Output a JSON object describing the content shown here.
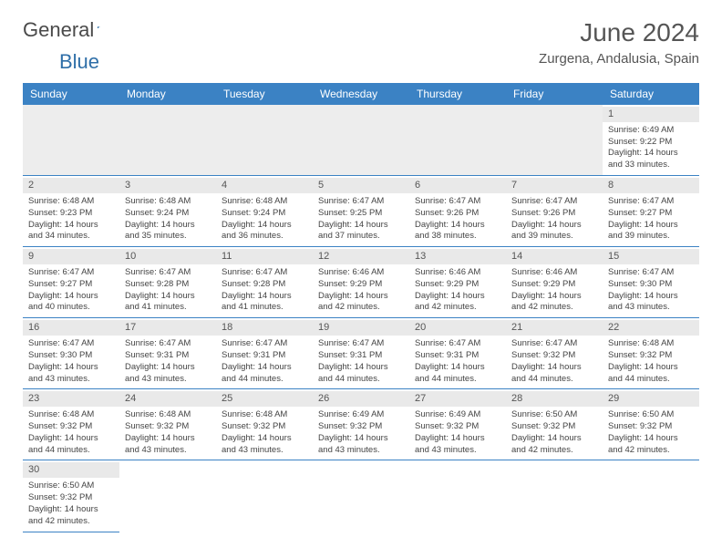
{
  "brand": {
    "name1": "General",
    "name2": "Blue"
  },
  "title": "June 2024",
  "location": "Zurgena, Andalusia, Spain",
  "colors": {
    "header_bg": "#3b82c4",
    "header_text": "#ffffff",
    "grid_line": "#3b82c4",
    "daynum_bg": "#e9e9e9",
    "empty_bg": "#ededed",
    "text": "#444444"
  },
  "day_names": [
    "Sunday",
    "Monday",
    "Tuesday",
    "Wednesday",
    "Thursday",
    "Friday",
    "Saturday"
  ],
  "weeks": [
    [
      null,
      null,
      null,
      null,
      null,
      null,
      {
        "n": "1",
        "sr": "6:49 AM",
        "ss": "9:22 PM",
        "dl": "14 hours and 33 minutes."
      }
    ],
    [
      {
        "n": "2",
        "sr": "6:48 AM",
        "ss": "9:23 PM",
        "dl": "14 hours and 34 minutes."
      },
      {
        "n": "3",
        "sr": "6:48 AM",
        "ss": "9:24 PM",
        "dl": "14 hours and 35 minutes."
      },
      {
        "n": "4",
        "sr": "6:48 AM",
        "ss": "9:24 PM",
        "dl": "14 hours and 36 minutes."
      },
      {
        "n": "5",
        "sr": "6:47 AM",
        "ss": "9:25 PM",
        "dl": "14 hours and 37 minutes."
      },
      {
        "n": "6",
        "sr": "6:47 AM",
        "ss": "9:26 PM",
        "dl": "14 hours and 38 minutes."
      },
      {
        "n": "7",
        "sr": "6:47 AM",
        "ss": "9:26 PM",
        "dl": "14 hours and 39 minutes."
      },
      {
        "n": "8",
        "sr": "6:47 AM",
        "ss": "9:27 PM",
        "dl": "14 hours and 39 minutes."
      }
    ],
    [
      {
        "n": "9",
        "sr": "6:47 AM",
        "ss": "9:27 PM",
        "dl": "14 hours and 40 minutes."
      },
      {
        "n": "10",
        "sr": "6:47 AM",
        "ss": "9:28 PM",
        "dl": "14 hours and 41 minutes."
      },
      {
        "n": "11",
        "sr": "6:47 AM",
        "ss": "9:28 PM",
        "dl": "14 hours and 41 minutes."
      },
      {
        "n": "12",
        "sr": "6:46 AM",
        "ss": "9:29 PM",
        "dl": "14 hours and 42 minutes."
      },
      {
        "n": "13",
        "sr": "6:46 AM",
        "ss": "9:29 PM",
        "dl": "14 hours and 42 minutes."
      },
      {
        "n": "14",
        "sr": "6:46 AM",
        "ss": "9:29 PM",
        "dl": "14 hours and 42 minutes."
      },
      {
        "n": "15",
        "sr": "6:47 AM",
        "ss": "9:30 PM",
        "dl": "14 hours and 43 minutes."
      }
    ],
    [
      {
        "n": "16",
        "sr": "6:47 AM",
        "ss": "9:30 PM",
        "dl": "14 hours and 43 minutes."
      },
      {
        "n": "17",
        "sr": "6:47 AM",
        "ss": "9:31 PM",
        "dl": "14 hours and 43 minutes."
      },
      {
        "n": "18",
        "sr": "6:47 AM",
        "ss": "9:31 PM",
        "dl": "14 hours and 44 minutes."
      },
      {
        "n": "19",
        "sr": "6:47 AM",
        "ss": "9:31 PM",
        "dl": "14 hours and 44 minutes."
      },
      {
        "n": "20",
        "sr": "6:47 AM",
        "ss": "9:31 PM",
        "dl": "14 hours and 44 minutes."
      },
      {
        "n": "21",
        "sr": "6:47 AM",
        "ss": "9:32 PM",
        "dl": "14 hours and 44 minutes."
      },
      {
        "n": "22",
        "sr": "6:48 AM",
        "ss": "9:32 PM",
        "dl": "14 hours and 44 minutes."
      }
    ],
    [
      {
        "n": "23",
        "sr": "6:48 AM",
        "ss": "9:32 PM",
        "dl": "14 hours and 44 minutes."
      },
      {
        "n": "24",
        "sr": "6:48 AM",
        "ss": "9:32 PM",
        "dl": "14 hours and 43 minutes."
      },
      {
        "n": "25",
        "sr": "6:48 AM",
        "ss": "9:32 PM",
        "dl": "14 hours and 43 minutes."
      },
      {
        "n": "26",
        "sr": "6:49 AM",
        "ss": "9:32 PM",
        "dl": "14 hours and 43 minutes."
      },
      {
        "n": "27",
        "sr": "6:49 AM",
        "ss": "9:32 PM",
        "dl": "14 hours and 43 minutes."
      },
      {
        "n": "28",
        "sr": "6:50 AM",
        "ss": "9:32 PM",
        "dl": "14 hours and 42 minutes."
      },
      {
        "n": "29",
        "sr": "6:50 AM",
        "ss": "9:32 PM",
        "dl": "14 hours and 42 minutes."
      }
    ],
    [
      {
        "n": "30",
        "sr": "6:50 AM",
        "ss": "9:32 PM",
        "dl": "14 hours and 42 minutes."
      },
      null,
      null,
      null,
      null,
      null,
      null
    ]
  ],
  "labels": {
    "sunrise": "Sunrise:",
    "sunset": "Sunset:",
    "daylight": "Daylight:"
  }
}
